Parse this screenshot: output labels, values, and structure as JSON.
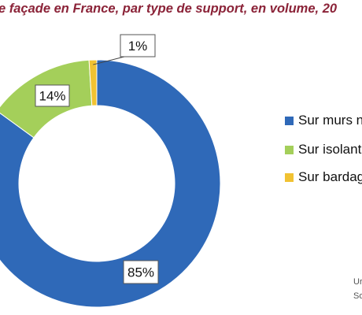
{
  "chart_data": {
    "type": "pie",
    "title": "e façade en France, par type de support, en volume, 20",
    "categories": [
      "Sur murs n",
      "Sur isolant",
      "Sur bardag"
    ],
    "values": [
      85,
      14,
      1
    ],
    "data_labels": [
      "85%",
      "14%",
      "1%"
    ],
    "colors": [
      "#2f69b8",
      "#a4cf5a",
      "#f1c232"
    ],
    "legend_position": "right"
  },
  "footnote": {
    "line1": "Ur",
    "line2": "So"
  }
}
